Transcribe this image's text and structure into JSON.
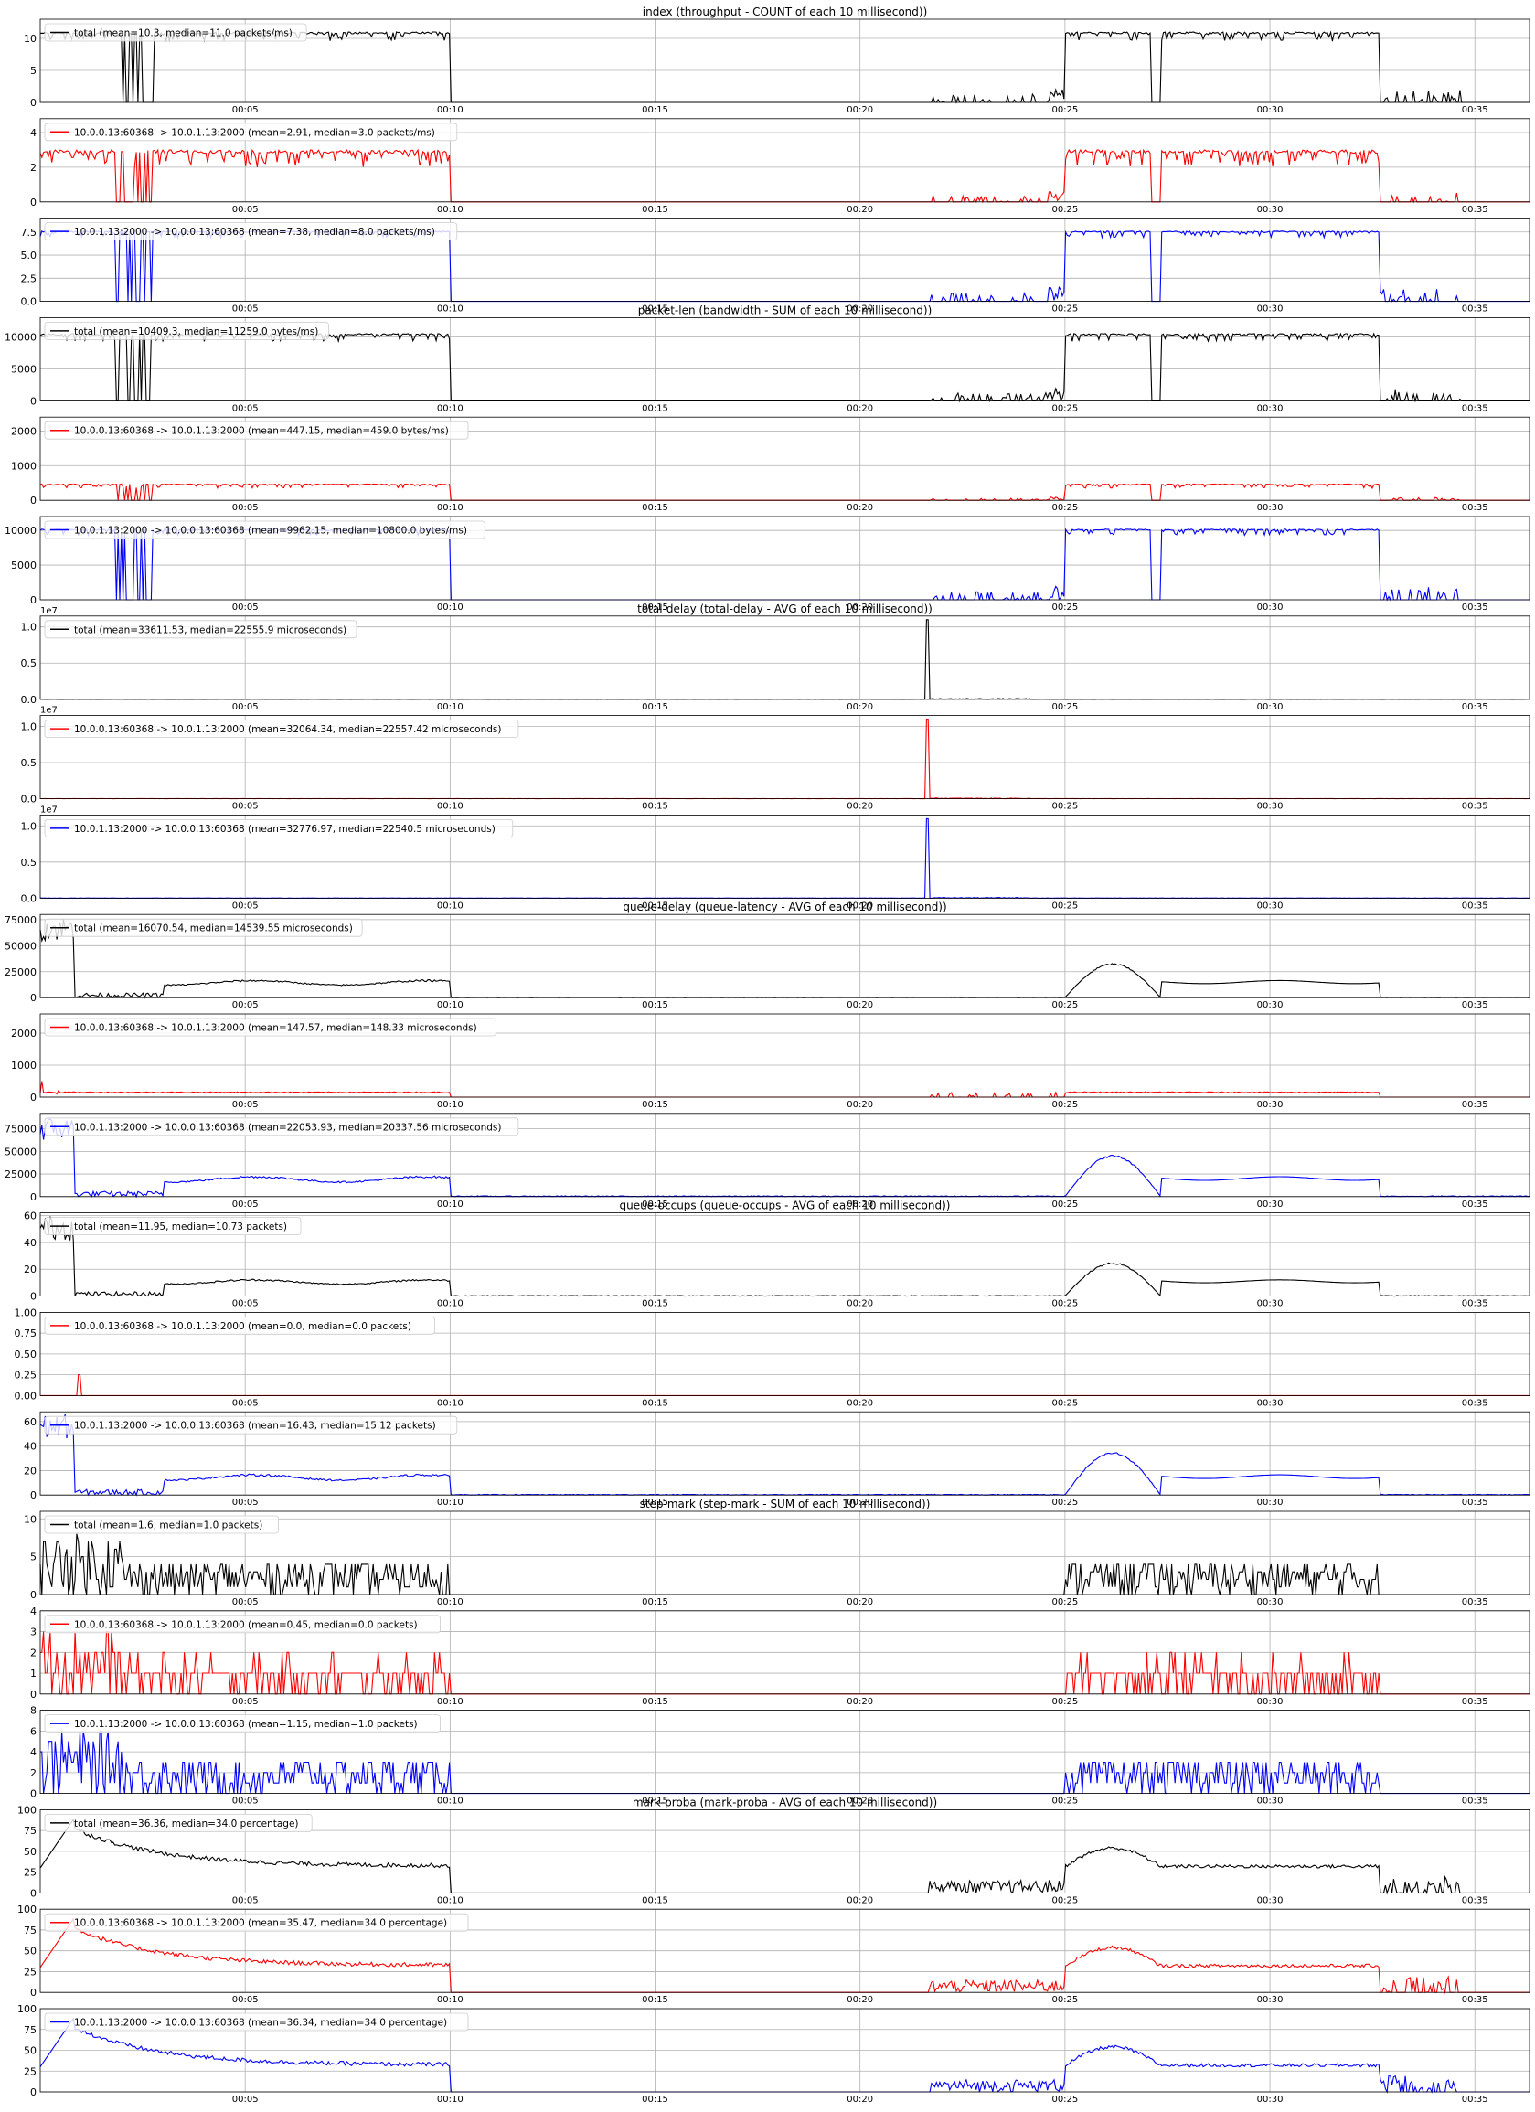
{
  "figure": {
    "x_tick_labels": [
      "00:05",
      "00:10",
      "00:15",
      "00:20",
      "00:25",
      "00:30",
      "00:35"
    ],
    "colors": {
      "total": "#000000",
      "upstream": "#ff0000",
      "downstream": "#0000ff",
      "grid": "#b0b0b0"
    }
  },
  "chart_data": [
    {
      "type": "line",
      "group": "index",
      "title": "index (throughput - COUNT of each 10 millisecond))",
      "offset_label": "",
      "series": [
        {
          "name": "total (mean=10.3, median=11.0 packets/ms)",
          "color": "#000000"
        }
      ],
      "ylim": [
        0,
        13
      ],
      "yticks": [
        "0",
        "5",
        "10"
      ],
      "ytick_values": [
        0,
        5,
        10
      ],
      "shape": "throughput",
      "base": 11,
      "noise": 1.5
    },
    {
      "type": "line",
      "group": "index",
      "title": "",
      "offset_label": "",
      "series": [
        {
          "name": "10.0.0.13:60368 -> 10.0.1.13:2000 (mean=2.91, median=3.0 packets/ms)",
          "color": "#ff0000"
        }
      ],
      "ylim": [
        0,
        4.8
      ],
      "yticks": [
        "0",
        "2",
        "4"
      ],
      "ytick_values": [
        0,
        2,
        4
      ],
      "shape": "throughput",
      "base": 3,
      "noise": 1.0
    },
    {
      "type": "line",
      "group": "index",
      "title": "",
      "offset_label": "",
      "series": [
        {
          "name": "10.0.1.13:2000 -> 10.0.0.13:60368 (mean=7.38, median=8.0 packets/ms)",
          "color": "#0000ff"
        }
      ],
      "ylim": [
        0,
        9
      ],
      "yticks": [
        "0.0",
        "2.5",
        "5.0",
        "7.5"
      ],
      "ytick_values": [
        0,
        2.5,
        5,
        7.5
      ],
      "shape": "throughput",
      "base": 7.6,
      "noise": 0.7
    },
    {
      "type": "line",
      "group": "packet-len",
      "title": "packet-len (bandwidth - SUM of each 10 millisecond))",
      "offset_label": "",
      "series": [
        {
          "name": "total (mean=10409.3, median=11259.0 bytes/ms)",
          "color": "#000000"
        }
      ],
      "ylim": [
        0,
        13000
      ],
      "yticks": [
        "0",
        "5000",
        "10000"
      ],
      "ytick_values": [
        0,
        5000,
        10000
      ],
      "shape": "throughput",
      "base": 10500,
      "noise": 1200
    },
    {
      "type": "line",
      "group": "packet-len",
      "title": "",
      "offset_label": "",
      "series": [
        {
          "name": "10.0.0.13:60368 -> 10.0.1.13:2000 (mean=447.15, median=459.0 bytes/ms)",
          "color": "#ff0000"
        }
      ],
      "ylim": [
        0,
        2400
      ],
      "yticks": [
        "0",
        "1000",
        "2000"
      ],
      "ytick_values": [
        0,
        1000,
        2000
      ],
      "shape": "throughput",
      "base": 470,
      "noise": 120
    },
    {
      "type": "line",
      "group": "packet-len",
      "title": "",
      "offset_label": "",
      "series": [
        {
          "name": "10.0.1.13:2000 -> 10.0.0.13:60368 (mean=9962.15, median=10800.0 bytes/ms)",
          "color": "#0000ff"
        }
      ],
      "ylim": [
        0,
        12000
      ],
      "yticks": [
        "0",
        "5000",
        "10000"
      ],
      "ytick_values": [
        0,
        5000,
        10000
      ],
      "shape": "throughput",
      "base": 10200,
      "noise": 900
    },
    {
      "type": "line",
      "group": "total-delay",
      "title": "total-delay (total-delay - AVG of each 10 millisecond))",
      "offset_label": "1e7",
      "series": [
        {
          "name": "total (mean=33611.53, median=22555.9 microseconds)",
          "color": "#000000"
        }
      ],
      "ylim": [
        0,
        1.15
      ],
      "yticks": [
        "0.0",
        "0.5",
        "1.0"
      ],
      "ytick_values": [
        0,
        0.5,
        1.0
      ],
      "shape": "delay_spike"
    },
    {
      "type": "line",
      "group": "total-delay",
      "title": "",
      "offset_label": "1e7",
      "series": [
        {
          "name": "10.0.0.13:60368 -> 10.0.1.13:2000 (mean=32064.34, median=22557.42 microseconds)",
          "color": "#ff0000"
        }
      ],
      "ylim": [
        0,
        1.15
      ],
      "yticks": [
        "0.0",
        "0.5",
        "1.0"
      ],
      "ytick_values": [
        0,
        0.5,
        1.0
      ],
      "shape": "delay_spike"
    },
    {
      "type": "line",
      "group": "total-delay",
      "title": "",
      "offset_label": "1e7",
      "series": [
        {
          "name": "10.0.1.13:2000 -> 10.0.0.13:60368 (mean=32776.97, median=22540.5 microseconds)",
          "color": "#0000ff"
        }
      ],
      "ylim": [
        0,
        1.15
      ],
      "yticks": [
        "0.0",
        "0.5",
        "1.0"
      ],
      "ytick_values": [
        0,
        0.5,
        1.0
      ],
      "shape": "delay_spike"
    },
    {
      "type": "line",
      "group": "queue-delay",
      "title": "queue-delay (queue-latency - AVG of each 10 millisecond))",
      "offset_label": "",
      "series": [
        {
          "name": "total (mean=16070.54, median=14539.55 microseconds)",
          "color": "#000000"
        }
      ],
      "ylim": [
        0,
        80000
      ],
      "yticks": [
        "0",
        "25000",
        "50000",
        "75000"
      ],
      "ytick_values": [
        0,
        25000,
        50000,
        75000
      ],
      "shape": "queue",
      "peak": 78000,
      "level": 15000,
      "hump": 33000
    },
    {
      "type": "line",
      "group": "queue-delay",
      "title": "",
      "offset_label": "",
      "series": [
        {
          "name": "10.0.0.13:60368 -> 10.0.1.13:2000 (mean=147.57, median=148.33 microseconds)",
          "color": "#ff0000"
        }
      ],
      "ylim": [
        0,
        2600
      ],
      "yticks": [
        "0",
        "1000",
        "2000"
      ],
      "ytick_values": [
        0,
        1000,
        2000
      ],
      "shape": "flat_spiky",
      "level": 150
    },
    {
      "type": "line",
      "group": "queue-delay",
      "title": "",
      "offset_label": "",
      "series": [
        {
          "name": "10.0.1.13:2000 -> 10.0.0.13:60368 (mean=22053.93, median=20337.56 microseconds)",
          "color": "#0000ff"
        }
      ],
      "ylim": [
        0,
        92000
      ],
      "yticks": [
        "0",
        "25000",
        "50000",
        "75000"
      ],
      "ytick_values": [
        0,
        25000,
        50000,
        75000
      ],
      "shape": "queue",
      "peak": 88000,
      "level": 20000,
      "hump": 46000
    },
    {
      "type": "line",
      "group": "queue-occups",
      "title": "queue-occups (queue-occups - AVG of each 10 millisecond))",
      "offset_label": "",
      "series": [
        {
          "name": "total (mean=11.95, median=10.73 packets)",
          "color": "#000000"
        }
      ],
      "ylim": [
        0,
        62
      ],
      "yticks": [
        "0",
        "20",
        "40",
        "60"
      ],
      "ytick_values": [
        0,
        20,
        40,
        60
      ],
      "shape": "queue",
      "peak": 60,
      "level": 11,
      "hump": 25
    },
    {
      "type": "line",
      "group": "queue-occups",
      "title": "",
      "offset_label": "",
      "series": [
        {
          "name": "10.0.0.13:60368 -> 10.0.1.13:2000 (mean=0.0, median=0.0 packets)",
          "color": "#ff0000"
        }
      ],
      "ylim": [
        0,
        1.0
      ],
      "yticks": [
        "0.00",
        "0.25",
        "0.50",
        "0.75",
        "1.00"
      ],
      "ytick_values": [
        0,
        0.25,
        0.5,
        0.75,
        1.0
      ],
      "shape": "zero"
    },
    {
      "type": "line",
      "group": "queue-occups",
      "title": "",
      "offset_label": "",
      "series": [
        {
          "name": "10.0.1.13:2000 -> 10.0.0.13:60368 (mean=16.43, median=15.12 packets)",
          "color": "#0000ff"
        }
      ],
      "ylim": [
        0,
        68
      ],
      "yticks": [
        "0",
        "20",
        "40",
        "60"
      ],
      "ytick_values": [
        0,
        20,
        40,
        60
      ],
      "shape": "queue",
      "peak": 66,
      "level": 15,
      "hump": 35
    },
    {
      "type": "line",
      "group": "step-mark",
      "title": "step-mark (step-mark - SUM of each 10 millisecond))",
      "offset_label": "",
      "series": [
        {
          "name": "total (mean=1.6, median=1.0 packets)",
          "color": "#000000"
        }
      ],
      "ylim": [
        0,
        11
      ],
      "yticks": [
        "0",
        "5",
        "10"
      ],
      "ytick_values": [
        0,
        5,
        10
      ],
      "shape": "marks",
      "maxv": 8
    },
    {
      "type": "line",
      "group": "step-mark",
      "title": "",
      "offset_label": "",
      "series": [
        {
          "name": "10.0.0.13:60368 -> 10.0.1.13:2000 (mean=0.45, median=0.0 packets)",
          "color": "#ff0000"
        }
      ],
      "ylim": [
        0,
        4
      ],
      "yticks": [
        "0",
        "1",
        "2",
        "3",
        "4"
      ],
      "ytick_values": [
        0,
        1,
        2,
        3,
        4
      ],
      "shape": "marks",
      "maxv": 3
    },
    {
      "type": "line",
      "group": "step-mark",
      "title": "",
      "offset_label": "",
      "series": [
        {
          "name": "10.0.1.13:2000 -> 10.0.0.13:60368 (mean=1.15, median=1.0 packets)",
          "color": "#0000ff"
        }
      ],
      "ylim": [
        0,
        8
      ],
      "yticks": [
        "0",
        "2",
        "4",
        "6",
        "8"
      ],
      "ytick_values": [
        0,
        2,
        4,
        6,
        8
      ],
      "shape": "marks",
      "maxv": 6
    },
    {
      "type": "line",
      "group": "mark-proba",
      "title": "mark-proba (mark-proba - AVG of each 10 millisecond))",
      "offset_label": "",
      "series": [
        {
          "name": "total (mean=36.36, median=34.0 percentage)",
          "color": "#000000"
        }
      ],
      "ylim": [
        0,
        100
      ],
      "yticks": [
        "0",
        "25",
        "50",
        "75",
        "100"
      ],
      "ytick_values": [
        0,
        25,
        50,
        75,
        100
      ],
      "shape": "proba"
    },
    {
      "type": "line",
      "group": "mark-proba",
      "title": "",
      "offset_label": "",
      "series": [
        {
          "name": "10.0.0.13:60368 -> 10.0.1.13:2000 (mean=35.47, median=34.0 percentage)",
          "color": "#ff0000"
        }
      ],
      "ylim": [
        0,
        100
      ],
      "yticks": [
        "0",
        "25",
        "50",
        "75",
        "100"
      ],
      "ytick_values": [
        0,
        25,
        50,
        75,
        100
      ],
      "shape": "proba"
    },
    {
      "type": "line",
      "group": "mark-proba",
      "title": "",
      "offset_label": "",
      "series": [
        {
          "name": "10.0.1.13:2000 -> 10.0.0.13:60368 (mean=36.34, median=34.0 percentage)",
          "color": "#0000ff"
        }
      ],
      "ylim": [
        0,
        100
      ],
      "yticks": [
        "0",
        "25",
        "50",
        "75",
        "100"
      ],
      "ytick_values": [
        0,
        25,
        50,
        75,
        100
      ],
      "shape": "proba"
    }
  ]
}
